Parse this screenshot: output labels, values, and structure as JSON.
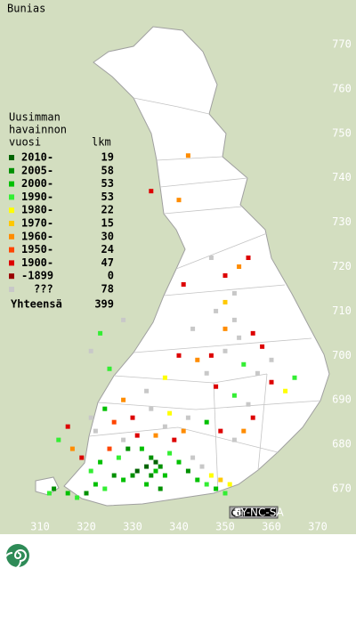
{
  "title": "Bunias",
  "legend": {
    "header": [
      "Uusimman",
      "havainnon",
      "vuosi"
    ],
    "count_header": "lkm",
    "rows": [
      {
        "label": "2010-",
        "count": 19,
        "color": "#006400"
      },
      {
        "label": "2005-",
        "count": 58,
        "color": "#009000"
      },
      {
        "label": "2000-",
        "count": 53,
        "color": "#00c000"
      },
      {
        "label": "1990-",
        "count": 53,
        "color": "#33ee33"
      },
      {
        "label": "1980-",
        "count": 22,
        "color": "#ffff00"
      },
      {
        "label": "1970-",
        "count": 15,
        "color": "#ffc800"
      },
      {
        "label": "1960-",
        "count": 30,
        "color": "#ff8c00"
      },
      {
        "label": "1950-",
        "count": 24,
        "color": "#ff4500"
      },
      {
        "label": "1900-",
        "count": 47,
        "color": "#dd0000"
      },
      {
        "label": "-1899",
        "count": 0,
        "color": "#990000"
      },
      {
        "label": "???",
        "count": 78,
        "color": "#c8c8c8"
      }
    ],
    "total": {
      "label": "Yhteensä",
      "count": 399
    }
  },
  "xlim": [
    310,
    370
  ],
  "ylim": [
    670,
    770
  ],
  "xticks": [
    310,
    320,
    330,
    340,
    350,
    360,
    370
  ],
  "yticks": [
    670,
    680,
    690,
    700,
    710,
    720,
    730,
    740,
    750,
    760,
    770
  ],
  "squares": [
    [
      331,
      674,
      0
    ],
    [
      333,
      675,
      0
    ],
    [
      334,
      673,
      1
    ],
    [
      335,
      676,
      0
    ],
    [
      336,
      675,
      1
    ],
    [
      335,
      674,
      2
    ],
    [
      334,
      677,
      1
    ],
    [
      337,
      673,
      2
    ],
    [
      336,
      670,
      1
    ],
    [
      333,
      671,
      2
    ],
    [
      330,
      673,
      1
    ],
    [
      328,
      672,
      2
    ],
    [
      326,
      673,
      1
    ],
    [
      324,
      670,
      3
    ],
    [
      322,
      671,
      2
    ],
    [
      320,
      669,
      1
    ],
    [
      318,
      668,
      3
    ],
    [
      316,
      669,
      2
    ],
    [
      313,
      670,
      1
    ],
    [
      312,
      669,
      3
    ],
    [
      321,
      674,
      3
    ],
    [
      323,
      676,
      2
    ],
    [
      327,
      677,
      3
    ],
    [
      329,
      679,
      1
    ],
    [
      332,
      679,
      2
    ],
    [
      338,
      678,
      3
    ],
    [
      340,
      676,
      2
    ],
    [
      342,
      674,
      1
    ],
    [
      344,
      672,
      2
    ],
    [
      346,
      671,
      3
    ],
    [
      348,
      670,
      2
    ],
    [
      350,
      669,
      3
    ],
    [
      343,
      677,
      10
    ],
    [
      345,
      675,
      10
    ],
    [
      347,
      673,
      4
    ],
    [
      349,
      672,
      5
    ],
    [
      351,
      671,
      4
    ],
    [
      339,
      681,
      8
    ],
    [
      341,
      683,
      6
    ],
    [
      337,
      684,
      10
    ],
    [
      335,
      682,
      6
    ],
    [
      331,
      682,
      8
    ],
    [
      328,
      681,
      10
    ],
    [
      325,
      679,
      7
    ],
    [
      319,
      677,
      8
    ],
    [
      317,
      679,
      6
    ],
    [
      322,
      683,
      10
    ],
    [
      326,
      685,
      7
    ],
    [
      330,
      686,
      8
    ],
    [
      334,
      688,
      10
    ],
    [
      338,
      687,
      4
    ],
    [
      342,
      686,
      10
    ],
    [
      346,
      685,
      2
    ],
    [
      349,
      683,
      8
    ],
    [
      352,
      681,
      10
    ],
    [
      354,
      683,
      6
    ],
    [
      356,
      686,
      8
    ],
    [
      355,
      689,
      10
    ],
    [
      352,
      691,
      3
    ],
    [
      348,
      693,
      8
    ],
    [
      346,
      696,
      10
    ],
    [
      344,
      699,
      6
    ],
    [
      347,
      700,
      8
    ],
    [
      350,
      701,
      10
    ],
    [
      354,
      698,
      3
    ],
    [
      357,
      696,
      10
    ],
    [
      360,
      694,
      8
    ],
    [
      363,
      692,
      4
    ],
    [
      365,
      695,
      3
    ],
    [
      360,
      699,
      10
    ],
    [
      358,
      702,
      8
    ],
    [
      353,
      704,
      10
    ],
    [
      350,
      706,
      6
    ],
    [
      352,
      708,
      10
    ],
    [
      356,
      705,
      8
    ],
    [
      348,
      710,
      10
    ],
    [
      350,
      712,
      5
    ],
    [
      352,
      714,
      10
    ],
    [
      350,
      718,
      8
    ],
    [
      353,
      720,
      6
    ],
    [
      355,
      722,
      8
    ],
    [
      347,
      722,
      10
    ],
    [
      341,
      716,
      8
    ],
    [
      343,
      706,
      10
    ],
    [
      340,
      700,
      8
    ],
    [
      337,
      695,
      4
    ],
    [
      333,
      692,
      10
    ],
    [
      328,
      690,
      6
    ],
    [
      324,
      688,
      2
    ],
    [
      321,
      686,
      10
    ],
    [
      316,
      684,
      8
    ],
    [
      314,
      681,
      3
    ],
    [
      325,
      697,
      3
    ],
    [
      321,
      701,
      10
    ],
    [
      323,
      705,
      3
    ],
    [
      328,
      708,
      10
    ],
    [
      340,
      735,
      6
    ],
    [
      334,
      737,
      8
    ],
    [
      342,
      745,
      6
    ]
  ]
}
